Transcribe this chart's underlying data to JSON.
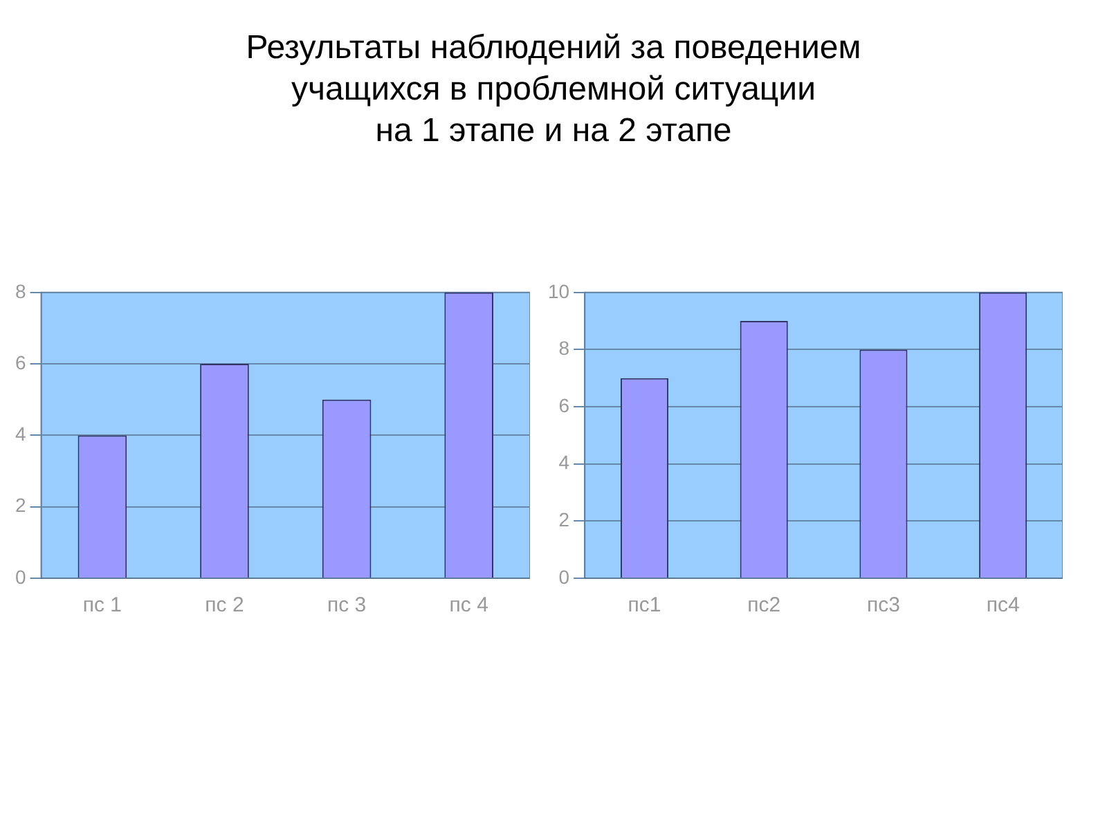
{
  "chart_data": [
    {
      "type": "bar",
      "title": "Результаты наблюдений за поведением\nучащихся в проблемной ситуации\nна 1 этапе и на 2 этапе",
      "categories": [
        "пс 1",
        "пс 2",
        "пс 3",
        "пс 4"
      ],
      "values": [
        4,
        6,
        5,
        8
      ],
      "color": "#9999ff",
      "ylim": [
        0,
        8
      ],
      "yticks": [
        0,
        2,
        4,
        6,
        8
      ],
      "grid": "y",
      "legend": false
    },
    {
      "type": "bar",
      "categories": [
        "пс1",
        "пс2",
        "пс3",
        "пс4"
      ],
      "values": [
        7,
        9,
        8,
        10
      ],
      "color": "#9999ff",
      "ylim": [
        0,
        10
      ],
      "yticks": [
        0,
        2,
        4,
        6,
        8,
        10
      ],
      "grid": "y",
      "legend": false
    }
  ]
}
